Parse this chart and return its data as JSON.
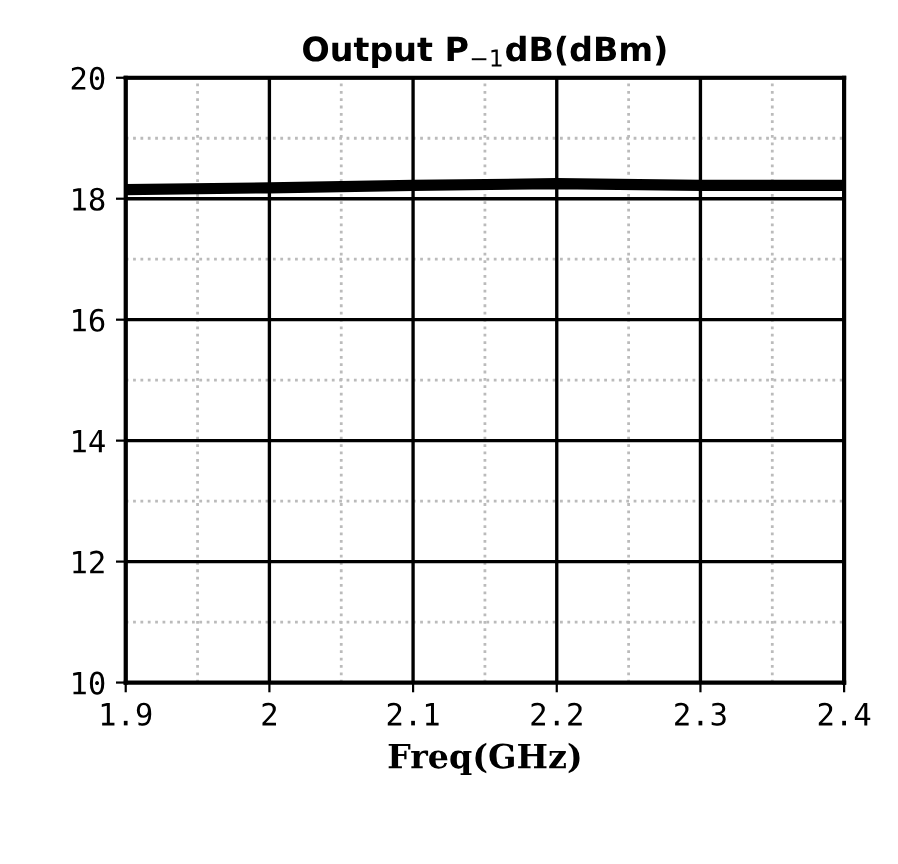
{
  "chart_data": {
    "type": "line",
    "title": "Output P$_{−1}$dB(dBm)",
    "xlabel": "Freq(GHz)",
    "x": [
      1.9,
      2.0,
      2.1,
      2.2,
      2.3,
      2.4
    ],
    "series": [
      {
        "color": "#000000",
        "values": [
          18.15,
          18.18,
          18.22,
          18.25,
          18.22,
          18.22
        ]
      }
    ],
    "xlim": [
      1.9,
      2.4
    ],
    "xticks": [
      1.9,
      2,
      2.1,
      2.2,
      2.3,
      2.4
    ],
    "ylim": [
      10,
      20
    ],
    "yticks": [
      10,
      12,
      14,
      16,
      18,
      20
    ],
    "grid": true,
    "marker": "none",
    "line_style": "solid"
  }
}
